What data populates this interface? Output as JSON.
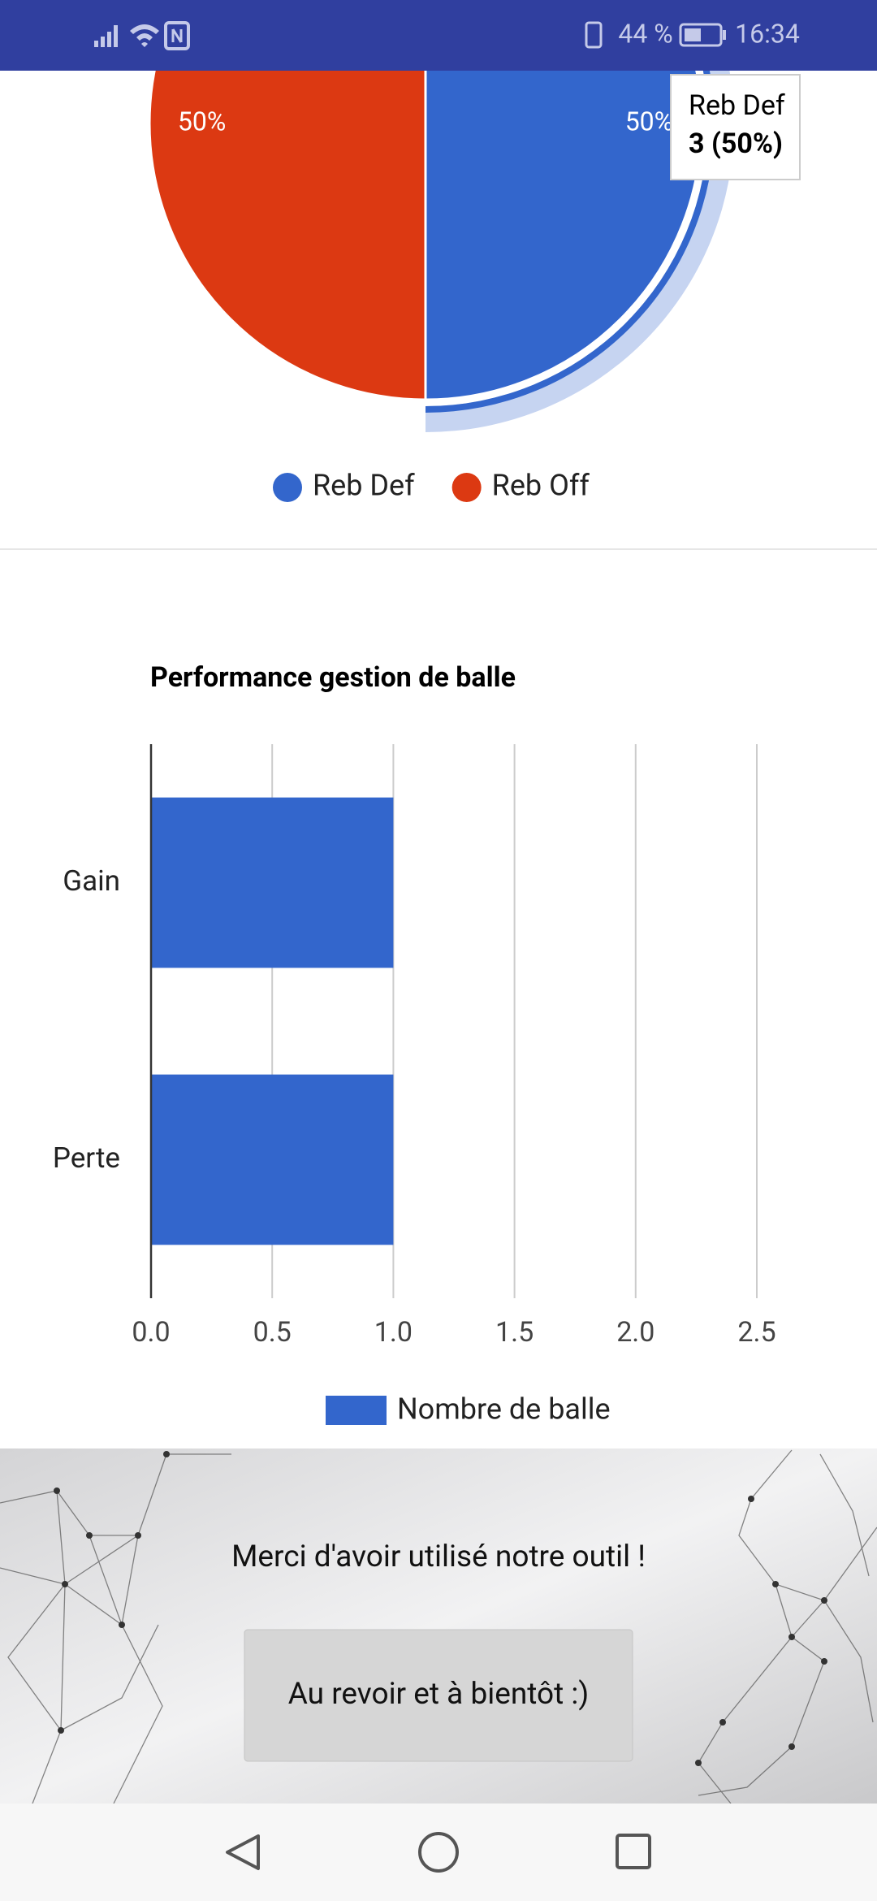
{
  "status_bar": {
    "battery": "44 %",
    "time": "16:34"
  },
  "chart_data": [
    {
      "type": "pie",
      "categories": [
        "Reb Def",
        "Reb Off"
      ],
      "values": [
        3,
        3
      ],
      "value_labels": [
        "50%",
        "50%"
      ],
      "colors": [
        "#3366cc",
        "#dc3912"
      ],
      "tooltip": {
        "label": "Reb Def",
        "text": "3 (50%)"
      },
      "legend": "bottom"
    },
    {
      "type": "hbar",
      "title": "Performance gestion de balle",
      "categories": [
        "Gain",
        "Perte"
      ],
      "series": [
        {
          "name": "Nombre de balle",
          "color": "#3366cc",
          "values": [
            1,
            1
          ]
        }
      ],
      "xlim": [
        0,
        2.5
      ],
      "xticks": [
        {
          "value": 0,
          "label": "0.0"
        },
        0.5,
        {
          "value": 1,
          "label": "1.0"
        },
        1.5,
        {
          "value": 2,
          "label": "2.0"
        },
        2.5
      ],
      "grid": true,
      "legend": "bottom"
    }
  ],
  "footer": {
    "message": "Merci d'avoir utilisé notre outil !",
    "button": "Au revoir et à bientôt :)"
  }
}
